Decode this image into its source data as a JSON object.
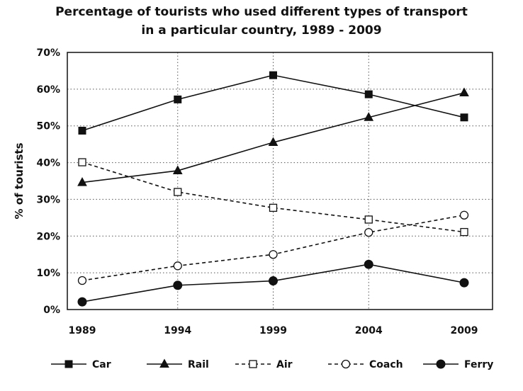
{
  "chart_data": {
    "type": "line",
    "title_line1": "Percentage of tourists who used different types of transport",
    "title_line2": "in a particular country, 1989 - 2009",
    "ylabel": "% of tourists",
    "xlabel": "",
    "categories": [
      "1989",
      "1994",
      "1999",
      "2004",
      "2009"
    ],
    "yticks": [
      "0%",
      "10%",
      "20%",
      "30%",
      "40%",
      "50%",
      "60%",
      "70%"
    ],
    "ylim": [
      0,
      70
    ],
    "grid": true,
    "legend_position": "bottom",
    "series": [
      {
        "name": "Car",
        "values": [
          48.7,
          57.2,
          63.8,
          58.6,
          52.3
        ],
        "marker": "square-filled",
        "dash": false
      },
      {
        "name": "Rail",
        "values": [
          34.6,
          37.8,
          45.5,
          52.3,
          59.0
        ],
        "marker": "triangle-filled",
        "dash": false
      },
      {
        "name": "Air",
        "values": [
          40.1,
          32.0,
          27.7,
          24.5,
          21.1
        ],
        "marker": "square-open",
        "dash": true
      },
      {
        "name": "Coach",
        "values": [
          7.9,
          11.9,
          15.0,
          21.0,
          25.7
        ],
        "marker": "circle-open",
        "dash": true
      },
      {
        "name": "Ferry",
        "values": [
          2.1,
          6.6,
          7.8,
          12.3,
          7.3
        ],
        "marker": "circle-filled",
        "dash": false
      }
    ]
  }
}
